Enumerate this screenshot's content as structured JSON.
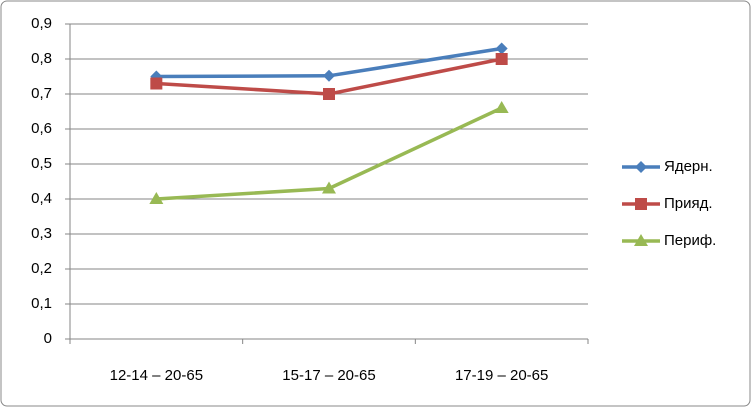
{
  "chart_data": {
    "type": "line",
    "categories": [
      "12-14 – 20-65",
      "15-17 – 20-65",
      "17-19 – 20-65"
    ],
    "series": [
      {
        "name": "Ядерн.",
        "color": "#4a7ebb",
        "marker": "diamond",
        "values": [
          0.75,
          0.752,
          0.83
        ]
      },
      {
        "name": "Прияд.",
        "color": "#be4b48",
        "marker": "square",
        "values": [
          0.73,
          0.7,
          0.8
        ]
      },
      {
        "name": "Периф.",
        "color": "#98b954",
        "marker": "triangle",
        "values": [
          0.4,
          0.43,
          0.66
        ]
      }
    ],
    "ylim": [
      0,
      0.9
    ],
    "yticks": [
      0,
      {
        "value": 0.1,
        "label": "0,1"
      },
      {
        "value": 0.2,
        "label": "0,2"
      },
      {
        "value": 0.3,
        "label": "0,3"
      },
      {
        "value": 0.4,
        "label": "0,4"
      },
      {
        "value": 0.5,
        "label": "0,5"
      },
      {
        "value": 0.6,
        "label": "0,6"
      },
      {
        "value": 0.7,
        "label": "0,7"
      },
      {
        "value": 0.8,
        "label": "0,8"
      },
      {
        "value": 0.9,
        "label": "0,9"
      }
    ],
    "grid": true,
    "legend": "right"
  }
}
